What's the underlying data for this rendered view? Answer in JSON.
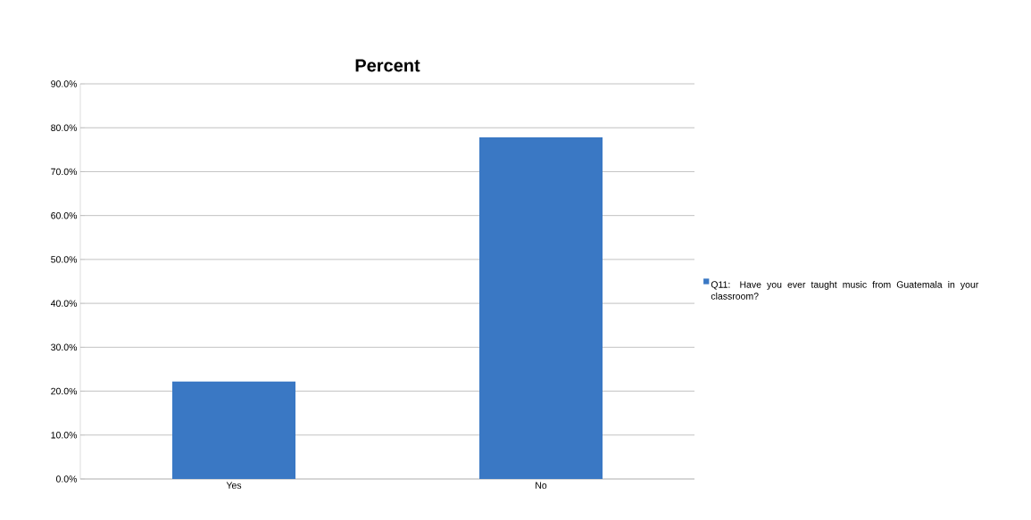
{
  "chart_data": {
    "type": "bar",
    "title": "Percent",
    "categories": [
      "Yes",
      "No"
    ],
    "series": [
      {
        "name": "Q11: Have you ever taught music from Guatemala in your classroom?",
        "color": "#3a78c4",
        "values": [
          22.2,
          77.8
        ]
      }
    ],
    "ylim": [
      0,
      90
    ],
    "yticks": [
      {
        "value": 0,
        "label": "0.0%"
      },
      {
        "value": 10,
        "label": "10.0%"
      },
      {
        "value": 20,
        "label": "20.0%"
      },
      {
        "value": 30,
        "label": "30.0%"
      },
      {
        "value": 40,
        "label": "40.0%"
      },
      {
        "value": 50,
        "label": "50.0%"
      },
      {
        "value": 60,
        "label": "60.0%"
      },
      {
        "value": 70,
        "label": "70.0%"
      },
      {
        "value": 80,
        "label": "80.0%"
      },
      {
        "value": 90,
        "label": "90.0%"
      }
    ],
    "grid": "y",
    "legend": "right"
  }
}
